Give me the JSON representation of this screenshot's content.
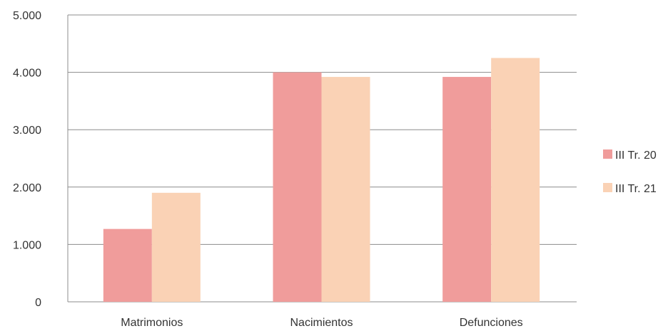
{
  "chart_data": {
    "type": "bar",
    "categories": [
      "Matrimonios",
      "Nacimientos",
      "Defunciones"
    ],
    "series": [
      {
        "name": "III Tr. 20",
        "values": [
          1270,
          4000,
          3920
        ],
        "color": "#f09c9b"
      },
      {
        "name": "III Tr. 21",
        "values": [
          1900,
          3920,
          4250
        ],
        "color": "#fad2b5"
      }
    ],
    "ylim": [
      0,
      5000
    ],
    "yticks": [
      0,
      1000,
      2000,
      3000,
      4000,
      5000
    ],
    "ytick_labels": [
      "0",
      "1.000",
      "2.000",
      "3.000",
      "4.000",
      "5.000"
    ],
    "grid": true,
    "legend_position": "right"
  }
}
